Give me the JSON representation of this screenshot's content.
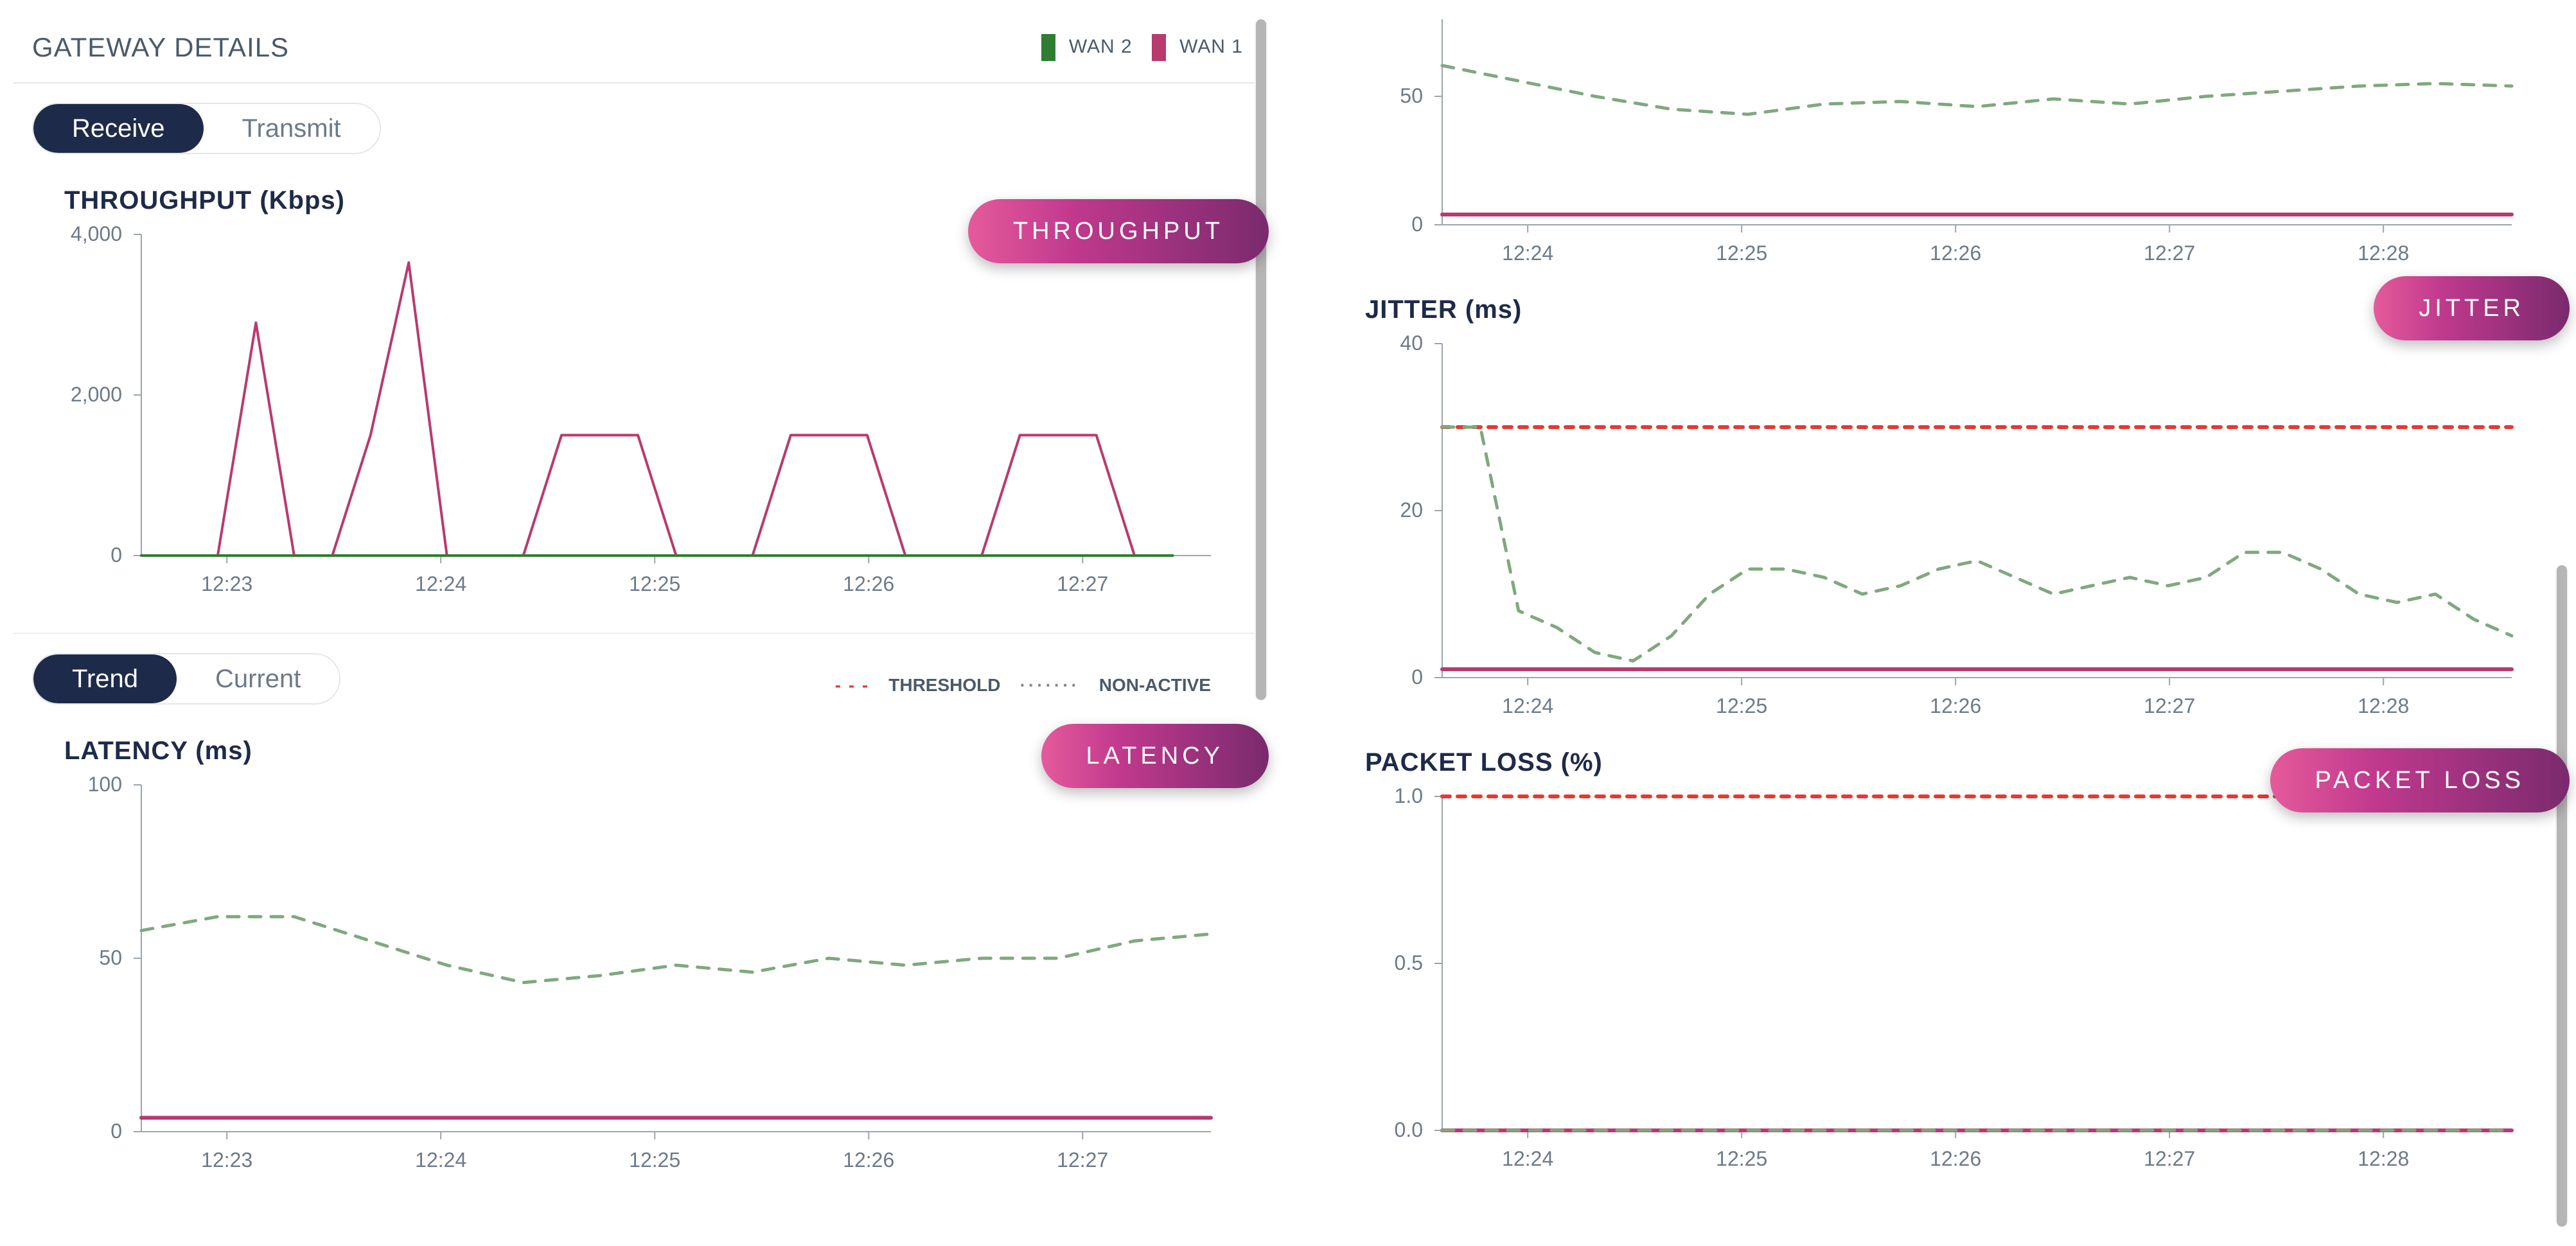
{
  "header": {
    "title": "GATEWAY DETAILS",
    "legend": [
      {
        "label": "WAN 2",
        "color": "#2e7d32"
      },
      {
        "label": "WAN 1",
        "color": "#b83a6f"
      }
    ]
  },
  "toggles": {
    "receiveTransmit": {
      "options": [
        "Receive",
        "Transmit"
      ],
      "active": 0
    },
    "trendCurrent": {
      "options": [
        "Trend",
        "Current"
      ],
      "active": 0
    }
  },
  "line_legend": {
    "threshold_label": "THRESHOLD",
    "nonactive_label": "NON-ACTIVE"
  },
  "colors": {
    "wan1": "#b83a6f",
    "wan2_nonactive": "#7fa87f",
    "threshold": "#e53935",
    "axis": "#9aa5af",
    "text": "#6c7a89",
    "title": "#1e2a4a",
    "badge_gradient_from": "#e55a9b",
    "badge_gradient_to": "#7a2a6e",
    "background": "#ffffff"
  },
  "charts": {
    "throughput": {
      "type": "line",
      "title": "THROUGHPUT (Kbps)",
      "badge": "THROUGHPUT",
      "ylim": [
        0,
        4000
      ],
      "yticks": [
        0,
        2000,
        4000
      ],
      "xticks": [
        "12:23",
        "12:24",
        "12:25",
        "12:26",
        "12:27"
      ],
      "xrange": [
        0,
        28
      ],
      "series": [
        {
          "name": "wan1",
          "color": "#b83a6f",
          "style": "solid",
          "width": 4,
          "points": [
            [
              0,
              0
            ],
            [
              1,
              0
            ],
            [
              2,
              0
            ],
            [
              3,
              2900
            ],
            [
              4,
              0
            ],
            [
              5,
              0
            ],
            [
              6,
              1500
            ],
            [
              7,
              3650
            ],
            [
              8,
              0
            ],
            [
              9,
              0
            ],
            [
              10,
              0
            ],
            [
              11,
              1500
            ],
            [
              12,
              1500
            ],
            [
              13,
              1500
            ],
            [
              14,
              0
            ],
            [
              15,
              0
            ],
            [
              16,
              0
            ],
            [
              17,
              1500
            ],
            [
              18,
              1500
            ],
            [
              19,
              1500
            ],
            [
              20,
              0
            ],
            [
              21,
              0
            ],
            [
              22,
              0
            ],
            [
              23,
              1500
            ],
            [
              24,
              1500
            ],
            [
              25,
              1500
            ],
            [
              26,
              0
            ],
            [
              27,
              0
            ]
          ]
        },
        {
          "name": "wan2",
          "color": "#2e7d32",
          "style": "solid",
          "width": 4,
          "points": [
            [
              0,
              0
            ],
            [
              27,
              0
            ]
          ]
        }
      ]
    },
    "latency_left": {
      "type": "line",
      "title": "LATENCY (ms)",
      "badge": "LATENCY",
      "ylim": [
        0,
        100
      ],
      "yticks": [
        0,
        50,
        100
      ],
      "xticks": [
        "12:23",
        "12:24",
        "12:25",
        "12:26",
        "12:27"
      ],
      "xrange": [
        0,
        28
      ],
      "series": [
        {
          "name": "wan1",
          "color": "#b83a6f",
          "style": "solid",
          "width": 6,
          "points": [
            [
              0,
              4
            ],
            [
              28,
              4
            ]
          ]
        },
        {
          "name": "wan2-nonactive",
          "color": "#7fa87f",
          "style": "dash",
          "width": 5,
          "points": [
            [
              0,
              58
            ],
            [
              2,
              62
            ],
            [
              4,
              62
            ],
            [
              6,
              55
            ],
            [
              8,
              48
            ],
            [
              10,
              43
            ],
            [
              12,
              45
            ],
            [
              14,
              48
            ],
            [
              16,
              46
            ],
            [
              18,
              50
            ],
            [
              20,
              48
            ],
            [
              22,
              50
            ],
            [
              24,
              50
            ],
            [
              26,
              55
            ],
            [
              28,
              57
            ]
          ]
        }
      ]
    },
    "latency_right_top": {
      "type": "line",
      "title": "",
      "ylim": [
        0,
        80
      ],
      "yticks": [
        0,
        50
      ],
      "xticks": [
        "12:24",
        "12:25",
        "12:26",
        "12:27",
        "12:28"
      ],
      "xrange": [
        0,
        28
      ],
      "series": [
        {
          "name": "wan1",
          "color": "#b83a6f",
          "style": "solid",
          "width": 6,
          "points": [
            [
              0,
              4
            ],
            [
              28,
              4
            ]
          ]
        },
        {
          "name": "wan2-nonactive",
          "color": "#7fa87f",
          "style": "dash",
          "width": 5,
          "points": [
            [
              0,
              62
            ],
            [
              2,
              56
            ],
            [
              4,
              50
            ],
            [
              6,
              45
            ],
            [
              8,
              43
            ],
            [
              10,
              47
            ],
            [
              12,
              48
            ],
            [
              14,
              46
            ],
            [
              16,
              49
            ],
            [
              18,
              47
            ],
            [
              20,
              50
            ],
            [
              22,
              52
            ],
            [
              24,
              54
            ],
            [
              26,
              55
            ],
            [
              28,
              54
            ]
          ]
        }
      ]
    },
    "jitter": {
      "type": "line",
      "title": "JITTER (ms)",
      "badge": "JITTER",
      "ylim": [
        0,
        40
      ],
      "yticks": [
        0,
        20,
        40
      ],
      "xticks": [
        "12:24",
        "12:25",
        "12:26",
        "12:27",
        "12:28"
      ],
      "xrange": [
        0,
        28
      ],
      "threshold": 30,
      "series": [
        {
          "name": "wan1",
          "color": "#b83a6f",
          "style": "solid",
          "width": 6,
          "points": [
            [
              0,
              1
            ],
            [
              28,
              1
            ]
          ]
        },
        {
          "name": "wan2-nonactive",
          "color": "#7fa87f",
          "style": "dash",
          "width": 5,
          "points": [
            [
              0,
              30
            ],
            [
              1,
              30
            ],
            [
              2,
              8
            ],
            [
              3,
              6
            ],
            [
              4,
              3
            ],
            [
              5,
              2
            ],
            [
              6,
              5
            ],
            [
              7,
              10
            ],
            [
              8,
              13
            ],
            [
              9,
              13
            ],
            [
              10,
              12
            ],
            [
              11,
              10
            ],
            [
              12,
              11
            ],
            [
              13,
              13
            ],
            [
              14,
              14
            ],
            [
              15,
              12
            ],
            [
              16,
              10
            ],
            [
              17,
              11
            ],
            [
              18,
              12
            ],
            [
              19,
              11
            ],
            [
              20,
              12
            ],
            [
              21,
              15
            ],
            [
              22,
              15
            ],
            [
              23,
              13
            ],
            [
              24,
              10
            ],
            [
              25,
              9
            ],
            [
              26,
              10
            ],
            [
              27,
              7
            ],
            [
              28,
              5
            ]
          ]
        }
      ]
    },
    "packetloss": {
      "type": "line",
      "title": "PACKET LOSS (%)",
      "badge": "PACKET LOSS",
      "ylim": [
        0,
        1.0
      ],
      "yticks": [
        0,
        0.5,
        1.0
      ],
      "ytick_decimals": 1,
      "xticks": [
        "12:24",
        "12:25",
        "12:26",
        "12:27",
        "12:28"
      ],
      "xrange": [
        0,
        28
      ],
      "threshold": 1.0,
      "series": [
        {
          "name": "wan1",
          "color": "#b83a6f",
          "style": "solid",
          "width": 6,
          "points": [
            [
              0,
              0
            ],
            [
              28,
              0
            ]
          ]
        },
        {
          "name": "wan2-nonactive",
          "color": "#7fa87f",
          "style": "dash",
          "width": 5,
          "points": [
            [
              0,
              0
            ],
            [
              28,
              0
            ]
          ]
        }
      ]
    }
  }
}
